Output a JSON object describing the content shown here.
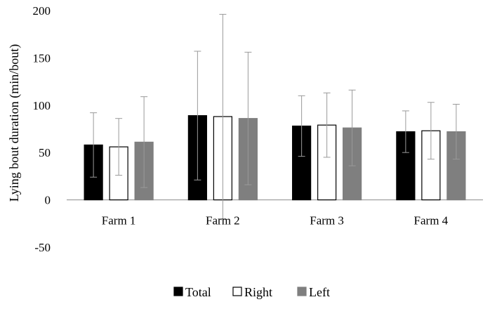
{
  "chart_data": {
    "type": "bar",
    "title": "",
    "xlabel": "",
    "ylabel": "Lying bout duration (min/bout)",
    "ylim": [
      -50,
      200
    ],
    "yticks": [
      -50,
      0,
      50,
      100,
      150,
      200
    ],
    "grid": false,
    "legend_position": "bottom",
    "error_bars": true,
    "categories": [
      "Farm 1",
      "Farm 2",
      "Farm 3",
      "Farm 4"
    ],
    "series": [
      {
        "name": "Total",
        "values": [
          58,
          89,
          78,
          72
        ],
        "errors": [
          34,
          68,
          32,
          22
        ],
        "color": "#000000",
        "fill": "#000000"
      },
      {
        "name": "Right",
        "values": [
          56,
          88,
          79,
          73
        ],
        "errors": [
          30,
          108,
          34,
          30
        ],
        "color": "#000000",
        "fill": "#ffffff"
      },
      {
        "name": "Left",
        "values": [
          61,
          86,
          76,
          72
        ],
        "errors": [
          48,
          70,
          40,
          29
        ],
        "color": "#7f7f7f",
        "fill": "#7f7f7f"
      }
    ]
  }
}
